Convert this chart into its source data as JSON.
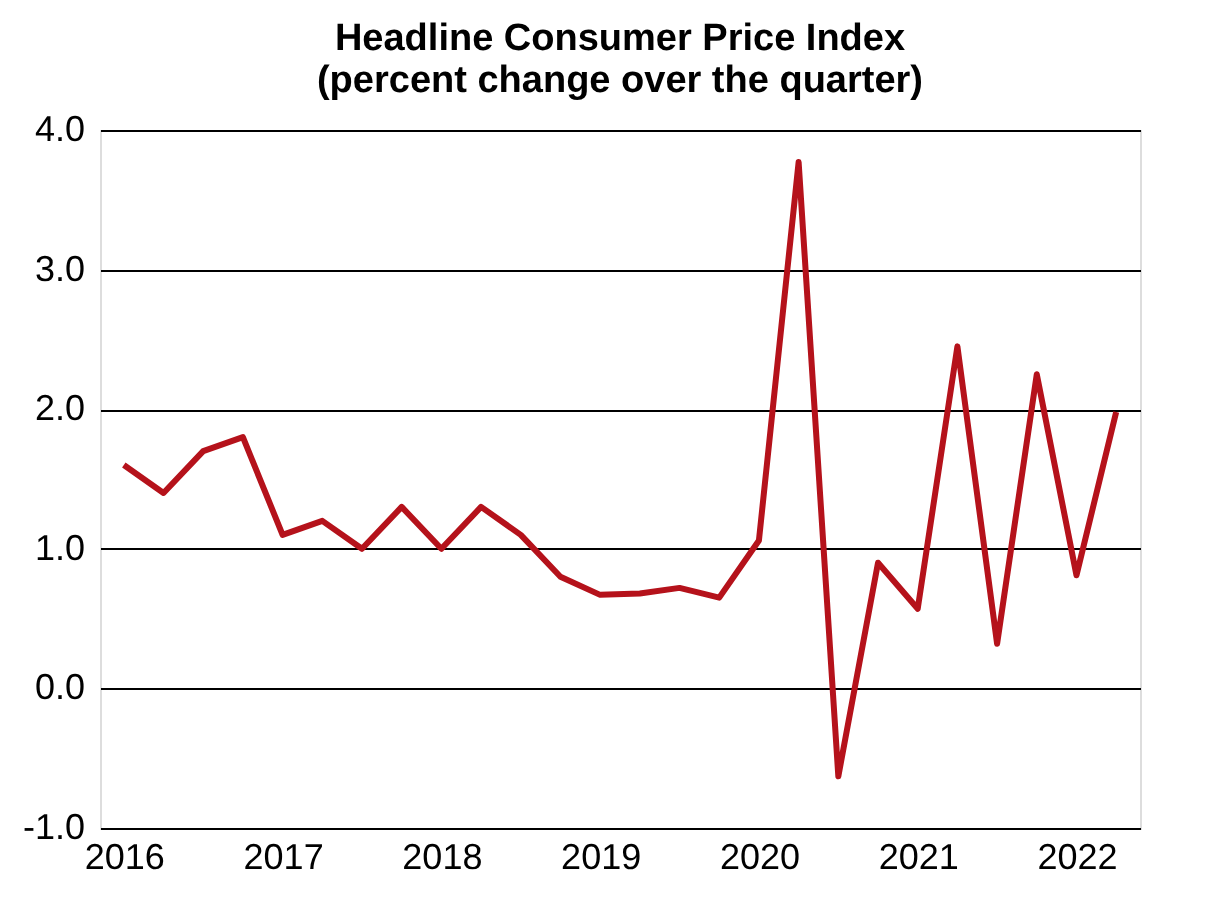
{
  "chart_data": {
    "type": "line",
    "title": [
      "Headline Consumer Price Index",
      "(percent  change over the quarter)"
    ],
    "categories": [
      "2016",
      null,
      null,
      null,
      "2017",
      null,
      null,
      null,
      "2018",
      null,
      null,
      null,
      "2019",
      null,
      null,
      null,
      "2020",
      null,
      null,
      null,
      "2021",
      null,
      null,
      null,
      "2022",
      null
    ],
    "series": [
      {
        "color": "#b5121b",
        "values": [
          1.6,
          1.4,
          1.7,
          1.8,
          1.1,
          1.2,
          1.0,
          1.3,
          1.0,
          1.3,
          1.1,
          0.8,
          0.67,
          0.68,
          0.72,
          0.65,
          1.06,
          3.77,
          -0.63,
          0.9,
          0.57,
          2.45,
          0.32,
          2.25,
          0.81,
          1.98
        ]
      }
    ],
    "ylim": [
      -1.0,
      4.0
    ],
    "yticks": [
      {
        "value": -1,
        "label": "-1.0"
      },
      {
        "value": 0,
        "label": "0.0"
      },
      {
        "value": 1,
        "label": "1.0"
      },
      {
        "value": 2,
        "label": "2.0"
      },
      {
        "value": 3,
        "label": "3.0"
      },
      {
        "value": 4,
        "label": "4.0"
      }
    ],
    "grid": "y",
    "marker": "none",
    "line_style": "solid"
  }
}
